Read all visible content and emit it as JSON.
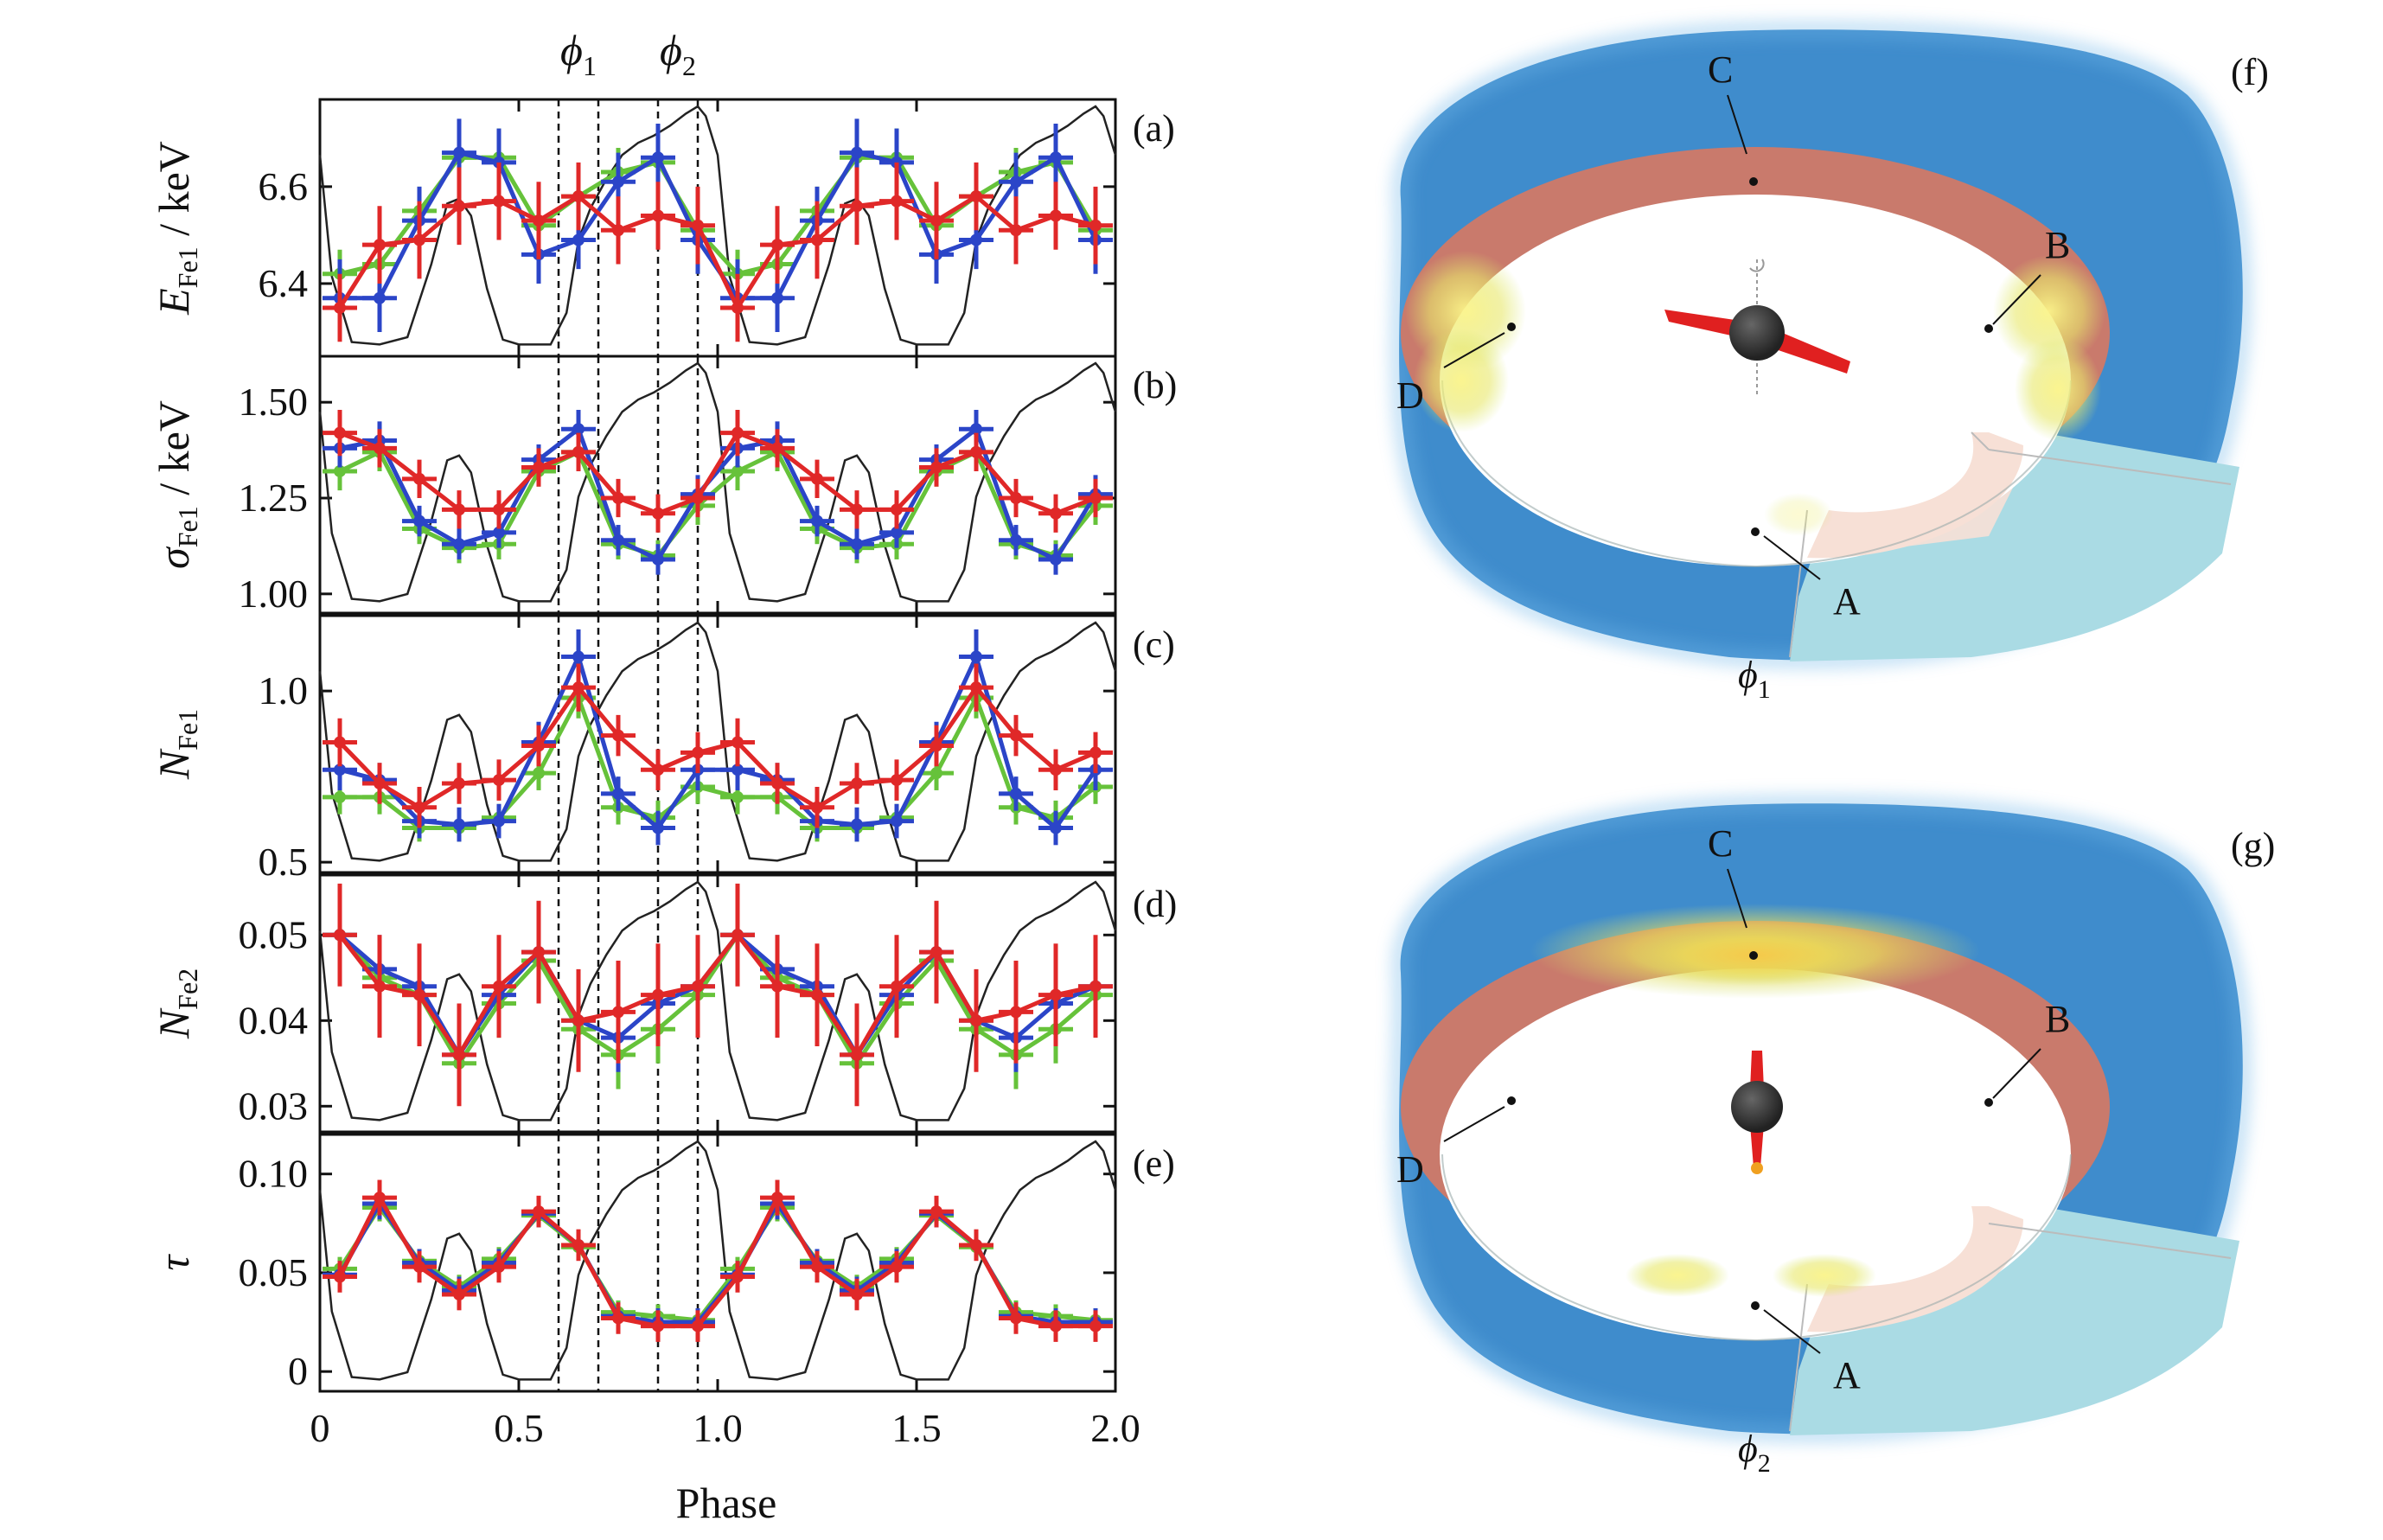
{
  "chart_data": [
    {
      "type": "line",
      "panel": "(a)",
      "ylabel": "E_Fe1 / keV",
      "ylabel_main": "E",
      "ylabel_sub": "Fe1",
      "ylabel_unit": " / keV",
      "ylim": [
        6.25,
        6.78
      ],
      "yticks": [
        6.4,
        6.6
      ],
      "ytick_labels": [
        "6.4",
        "6.6"
      ],
      "x": [
        0.05,
        0.15,
        0.25,
        0.35,
        0.45,
        0.55,
        0.65,
        0.75,
        0.85,
        0.95,
        1.05,
        1.15,
        1.25,
        1.35,
        1.45,
        1.55,
        1.65,
        1.75,
        1.85,
        1.95
      ],
      "series": [
        {
          "color": "#66c23a",
          "values": [
            6.42,
            6.44,
            6.55,
            6.66,
            6.66,
            6.52,
            6.58,
            6.63,
            6.65,
            6.51,
            6.42,
            6.44,
            6.55,
            6.66,
            6.66,
            6.52,
            6.58,
            6.63,
            6.65,
            6.51
          ],
          "errors": [
            0.05,
            0.05,
            0.05,
            0.06,
            0.06,
            0.05,
            0.05,
            0.05,
            0.05,
            0.05,
            0.05,
            0.05,
            0.05,
            0.06,
            0.06,
            0.05,
            0.05,
            0.05,
            0.05,
            0.05
          ]
        },
        {
          "color": "#2b45c8",
          "values": [
            6.37,
            6.37,
            6.53,
            6.67,
            6.65,
            6.46,
            6.49,
            6.61,
            6.66,
            6.49,
            6.37,
            6.37,
            6.53,
            6.67,
            6.65,
            6.46,
            6.49,
            6.61,
            6.66,
            6.49
          ],
          "errors": [
            0.08,
            0.07,
            0.07,
            0.07,
            0.07,
            0.06,
            0.06,
            0.06,
            0.07,
            0.07,
            0.08,
            0.07,
            0.07,
            0.07,
            0.07,
            0.06,
            0.06,
            0.06,
            0.07,
            0.07
          ]
        },
        {
          "color": "#e02828",
          "values": [
            6.35,
            6.48,
            6.49,
            6.56,
            6.57,
            6.53,
            6.58,
            6.51,
            6.54,
            6.52,
            6.35,
            6.48,
            6.49,
            6.56,
            6.57,
            6.53,
            6.58,
            6.51,
            6.54,
            6.52
          ],
          "errors": [
            0.07,
            0.08,
            0.08,
            0.08,
            0.08,
            0.08,
            0.07,
            0.07,
            0.07,
            0.08,
            0.07,
            0.08,
            0.08,
            0.08,
            0.08,
            0.08,
            0.07,
            0.07,
            0.07,
            0.08
          ]
        }
      ]
    },
    {
      "type": "line",
      "panel": "(b)",
      "ylabel": "σ_Fe1 / keV",
      "ylabel_main": "σ",
      "ylabel_sub": "Fe1",
      "ylabel_unit": " / keV",
      "ylim": [
        0.95,
        1.62
      ],
      "yticks": [
        1.0,
        1.25,
        1.5
      ],
      "ytick_labels": [
        "1.00",
        "1.25",
        "1.50"
      ],
      "x": [
        0.05,
        0.15,
        0.25,
        0.35,
        0.45,
        0.55,
        0.65,
        0.75,
        0.85,
        0.95,
        1.05,
        1.15,
        1.25,
        1.35,
        1.45,
        1.55,
        1.65,
        1.75,
        1.85,
        1.95
      ],
      "series": [
        {
          "color": "#66c23a",
          "values": [
            1.32,
            1.37,
            1.17,
            1.12,
            1.13,
            1.32,
            1.37,
            1.13,
            1.1,
            1.23,
            1.32,
            1.37,
            1.17,
            1.12,
            1.13,
            1.32,
            1.37,
            1.13,
            1.1,
            1.23
          ],
          "errors": [
            0.05,
            0.05,
            0.04,
            0.04,
            0.04,
            0.04,
            0.04,
            0.04,
            0.04,
            0.05,
            0.05,
            0.05,
            0.04,
            0.04,
            0.04,
            0.04,
            0.04,
            0.04,
            0.04,
            0.05
          ]
        },
        {
          "color": "#2b45c8",
          "values": [
            1.38,
            1.4,
            1.19,
            1.13,
            1.16,
            1.35,
            1.43,
            1.14,
            1.09,
            1.26,
            1.38,
            1.4,
            1.19,
            1.13,
            1.16,
            1.35,
            1.43,
            1.14,
            1.09,
            1.26
          ],
          "errors": [
            0.05,
            0.05,
            0.04,
            0.04,
            0.04,
            0.04,
            0.05,
            0.04,
            0.04,
            0.05,
            0.05,
            0.05,
            0.04,
            0.04,
            0.04,
            0.04,
            0.05,
            0.04,
            0.04,
            0.05
          ]
        },
        {
          "color": "#e02828",
          "values": [
            1.42,
            1.38,
            1.3,
            1.22,
            1.22,
            1.33,
            1.37,
            1.25,
            1.21,
            1.25,
            1.42,
            1.38,
            1.3,
            1.22,
            1.22,
            1.33,
            1.37,
            1.25,
            1.21,
            1.25
          ],
          "errors": [
            0.06,
            0.05,
            0.05,
            0.05,
            0.05,
            0.05,
            0.05,
            0.05,
            0.05,
            0.05,
            0.06,
            0.05,
            0.05,
            0.05,
            0.05,
            0.05,
            0.05,
            0.05,
            0.05,
            0.05
          ]
        }
      ]
    },
    {
      "type": "line",
      "panel": "(c)",
      "ylabel": "N_Fe1",
      "ylabel_main": "N",
      "ylabel_sub": "Fe1",
      "ylabel_unit": "",
      "ylim": [
        0.47,
        1.22
      ],
      "yticks": [
        0.5,
        1.0
      ],
      "ytick_labels": [
        "0.5",
        "1.0"
      ],
      "x": [
        0.05,
        0.15,
        0.25,
        0.35,
        0.45,
        0.55,
        0.65,
        0.75,
        0.85,
        0.95,
        1.05,
        1.15,
        1.25,
        1.35,
        1.45,
        1.55,
        1.65,
        1.75,
        1.85,
        1.95
      ],
      "series": [
        {
          "color": "#66c23a",
          "values": [
            0.69,
            0.69,
            0.6,
            0.6,
            0.63,
            0.76,
            0.98,
            0.66,
            0.63,
            0.72,
            0.69,
            0.69,
            0.6,
            0.6,
            0.63,
            0.76,
            0.98,
            0.66,
            0.63,
            0.72
          ],
          "errors": [
            0.05,
            0.05,
            0.04,
            0.04,
            0.04,
            0.05,
            0.06,
            0.05,
            0.05,
            0.05,
            0.05,
            0.05,
            0.04,
            0.04,
            0.04,
            0.05,
            0.06,
            0.05,
            0.05,
            0.05
          ]
        },
        {
          "color": "#2b45c8",
          "values": [
            0.77,
            0.74,
            0.62,
            0.61,
            0.62,
            0.85,
            1.1,
            0.7,
            0.6,
            0.77,
            0.77,
            0.74,
            0.62,
            0.61,
            0.62,
            0.85,
            1.1,
            0.7,
            0.6,
            0.77
          ],
          "errors": [
            0.06,
            0.05,
            0.05,
            0.05,
            0.05,
            0.06,
            0.08,
            0.05,
            0.05,
            0.06,
            0.06,
            0.05,
            0.05,
            0.05,
            0.05,
            0.06,
            0.08,
            0.05,
            0.05,
            0.06
          ]
        },
        {
          "color": "#e02828",
          "values": [
            0.85,
            0.73,
            0.66,
            0.73,
            0.74,
            0.84,
            1.01,
            0.87,
            0.77,
            0.82,
            0.85,
            0.73,
            0.66,
            0.73,
            0.74,
            0.84,
            1.01,
            0.87,
            0.77,
            0.82
          ],
          "errors": [
            0.07,
            0.06,
            0.06,
            0.06,
            0.06,
            0.06,
            0.07,
            0.06,
            0.06,
            0.06,
            0.07,
            0.06,
            0.06,
            0.06,
            0.06,
            0.06,
            0.07,
            0.06,
            0.06,
            0.06
          ]
        }
      ]
    },
    {
      "type": "line",
      "panel": "(d)",
      "ylabel": "N_Fe2",
      "ylabel_main": "N",
      "ylabel_sub": "Fe2",
      "ylabel_unit": "",
      "ylim": [
        0.027,
        0.057
      ],
      "yticks": [
        0.03,
        0.04,
        0.05
      ],
      "ytick_labels": [
        "0.03",
        "0.04",
        "0.05"
      ],
      "x": [
        0.05,
        0.15,
        0.25,
        0.35,
        0.45,
        0.55,
        0.65,
        0.75,
        0.85,
        0.95,
        1.05,
        1.15,
        1.25,
        1.35,
        1.45,
        1.55,
        1.65,
        1.75,
        1.85,
        1.95
      ],
      "series": [
        {
          "color": "#66c23a",
          "values": [
            0.05,
            0.045,
            0.043,
            0.035,
            0.042,
            0.047,
            0.039,
            0.036,
            0.039,
            0.043,
            0.05,
            0.045,
            0.043,
            0.035,
            0.042,
            0.047,
            0.039,
            0.036,
            0.039,
            0.043
          ],
          "errors": [
            0.004,
            0.004,
            0.004,
            0.004,
            0.004,
            0.004,
            0.004,
            0.004,
            0.004,
            0.004,
            0.004,
            0.004,
            0.004,
            0.004,
            0.004,
            0.004,
            0.004,
            0.004,
            0.004,
            0.004
          ]
        },
        {
          "color": "#2b45c8",
          "values": [
            0.05,
            0.046,
            0.044,
            0.036,
            0.043,
            0.048,
            0.04,
            0.038,
            0.042,
            0.044,
            0.05,
            0.046,
            0.044,
            0.036,
            0.043,
            0.048,
            0.04,
            0.038,
            0.042,
            0.044
          ],
          "errors": [
            0.004,
            0.004,
            0.004,
            0.004,
            0.004,
            0.004,
            0.004,
            0.004,
            0.004,
            0.004,
            0.004,
            0.004,
            0.004,
            0.004,
            0.004,
            0.004,
            0.004,
            0.004,
            0.004,
            0.004
          ]
        },
        {
          "color": "#e02828",
          "values": [
            0.05,
            0.044,
            0.043,
            0.036,
            0.044,
            0.048,
            0.04,
            0.041,
            0.043,
            0.044,
            0.05,
            0.044,
            0.043,
            0.036,
            0.044,
            0.048,
            0.04,
            0.041,
            0.043,
            0.044
          ],
          "errors": [
            0.006,
            0.006,
            0.006,
            0.006,
            0.006,
            0.006,
            0.006,
            0.006,
            0.006,
            0.006,
            0.006,
            0.006,
            0.006,
            0.006,
            0.006,
            0.006,
            0.006,
            0.006,
            0.006,
            0.006
          ]
        }
      ]
    },
    {
      "type": "line",
      "panel": "(e)",
      "ylabel": "τ",
      "ylabel_main": "τ",
      "ylabel_sub": "",
      "ylabel_unit": "",
      "ylim": [
        -0.01,
        0.12
      ],
      "yticks": [
        0,
        0.05,
        0.1
      ],
      "ytick_labels": [
        "0",
        "0.05",
        "0.10"
      ],
      "x": [
        0.05,
        0.15,
        0.25,
        0.35,
        0.45,
        0.55,
        0.65,
        0.75,
        0.85,
        0.95,
        1.05,
        1.15,
        1.25,
        1.35,
        1.45,
        1.55,
        1.65,
        1.75,
        1.85,
        1.95
      ],
      "series": [
        {
          "color": "#66c23a",
          "values": [
            0.052,
            0.083,
            0.056,
            0.043,
            0.057,
            0.079,
            0.063,
            0.03,
            0.028,
            0.026,
            0.052,
            0.083,
            0.056,
            0.043,
            0.057,
            0.079,
            0.063,
            0.03,
            0.028,
            0.026
          ],
          "errors": [
            0.006,
            0.007,
            0.006,
            0.006,
            0.006,
            0.006,
            0.006,
            0.006,
            0.006,
            0.006,
            0.006,
            0.007,
            0.006,
            0.006,
            0.006,
            0.006,
            0.006,
            0.006,
            0.006,
            0.006
          ]
        },
        {
          "color": "#2b45c8",
          "values": [
            0.049,
            0.085,
            0.055,
            0.041,
            0.055,
            0.08,
            0.064,
            0.028,
            0.025,
            0.025,
            0.049,
            0.085,
            0.055,
            0.041,
            0.055,
            0.08,
            0.064,
            0.028,
            0.025,
            0.025
          ],
          "errors": [
            0.007,
            0.008,
            0.007,
            0.007,
            0.007,
            0.007,
            0.007,
            0.007,
            0.007,
            0.007,
            0.007,
            0.008,
            0.007,
            0.007,
            0.007,
            0.007,
            0.007,
            0.007,
            0.007,
            0.007
          ]
        },
        {
          "color": "#e02828",
          "values": [
            0.048,
            0.088,
            0.053,
            0.039,
            0.053,
            0.081,
            0.064,
            0.027,
            0.023,
            0.023,
            0.048,
            0.088,
            0.053,
            0.039,
            0.053,
            0.081,
            0.064,
            0.027,
            0.023,
            0.023
          ],
          "errors": [
            0.008,
            0.009,
            0.008,
            0.008,
            0.008,
            0.008,
            0.008,
            0.008,
            0.008,
            0.008,
            0.008,
            0.009,
            0.008,
            0.008,
            0.008,
            0.008,
            0.008,
            0.008,
            0.008,
            0.008
          ]
        }
      ]
    }
  ],
  "shared_axis": {
    "xlabel": "Phase",
    "xlim": [
      0,
      2.0
    ],
    "xticks": [
      0,
      0.5,
      1.0,
      1.5,
      2.0
    ],
    "xtick_labels": [
      "0",
      "0.5",
      "1.0",
      "1.5",
      "2.0"
    ],
    "phase_markers": [
      {
        "label_main": "ϕ",
        "label_sub": "1",
        "x": [
          0.6,
          0.7
        ]
      },
      {
        "label_main": "ϕ",
        "label_sub": "2",
        "x": [
          0.85,
          0.95
        ]
      }
    ],
    "pulse_profile": {
      "color": "#222222",
      "x": [
        0.0,
        0.03,
        0.08,
        0.15,
        0.22,
        0.28,
        0.32,
        0.35,
        0.38,
        0.42,
        0.46,
        0.5,
        0.54,
        0.58,
        0.62,
        0.65,
        0.68,
        0.72,
        0.76,
        0.8,
        0.84,
        0.88,
        0.92,
        0.95,
        0.97,
        1.0,
        1.03,
        1.08,
        1.15,
        1.22,
        1.28,
        1.32,
        1.35,
        1.38,
        1.42,
        1.46,
        1.5,
        1.54,
        1.58,
        1.62,
        1.65,
        1.68,
        1.72,
        1.76,
        1.8,
        1.84,
        1.88,
        1.92,
        1.95,
        1.97,
        2.0
      ],
      "level": [
        0.8,
        0.3,
        0.03,
        0.02,
        0.05,
        0.35,
        0.6,
        0.62,
        0.55,
        0.25,
        0.04,
        0.02,
        0.02,
        0.02,
        0.15,
        0.45,
        0.58,
        0.7,
        0.8,
        0.85,
        0.88,
        0.92,
        0.97,
        1.0,
        0.96,
        0.8,
        0.3,
        0.03,
        0.02,
        0.05,
        0.35,
        0.6,
        0.62,
        0.55,
        0.25,
        0.04,
        0.02,
        0.02,
        0.02,
        0.15,
        0.45,
        0.58,
        0.7,
        0.8,
        0.85,
        0.88,
        0.92,
        0.97,
        1.0,
        0.96,
        0.8
      ]
    }
  },
  "diagrams": [
    {
      "panel": "(f)",
      "phase_main": "ϕ",
      "phase_sub": "1",
      "points": [
        "A",
        "B",
        "C",
        "D"
      ],
      "hot_region": "sides"
    },
    {
      "panel": "(g)",
      "phase_main": "ϕ",
      "phase_sub": "2",
      "points": [
        "A",
        "B",
        "C",
        "D"
      ],
      "hot_region": "top"
    }
  ],
  "colors": {
    "disk_blue": "#3f8ccc",
    "disk_light": "#aadbe4",
    "ring_red": "#c97a6c",
    "ring_light": "#f7e0d6",
    "hot_yellow": "#f2ef7c",
    "jet_red": "#e02020",
    "star": "#333333"
  }
}
